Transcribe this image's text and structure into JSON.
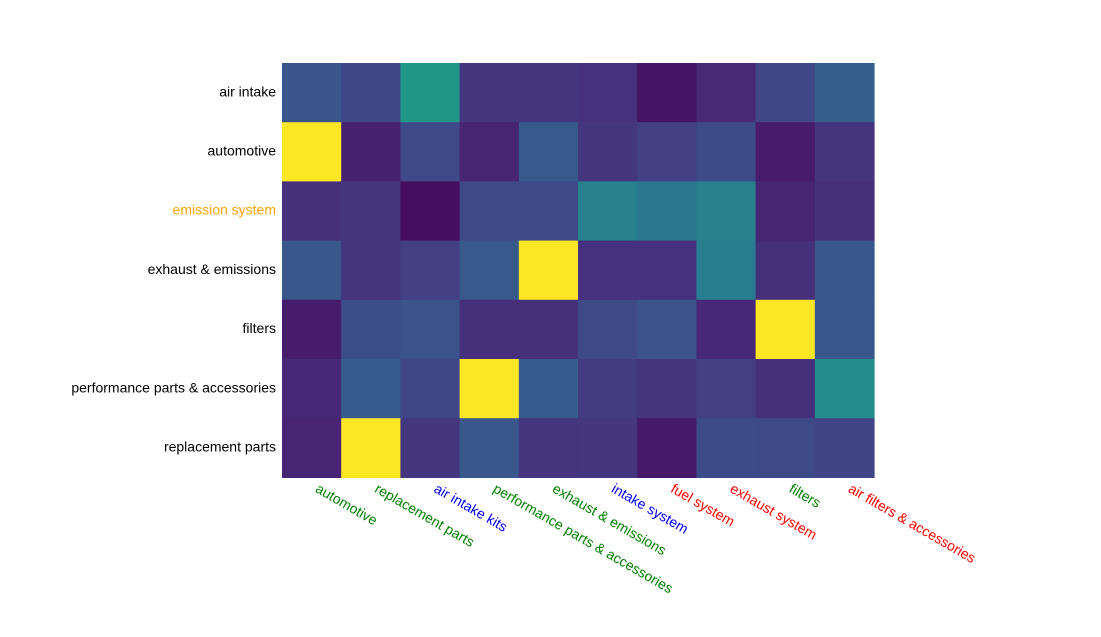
{
  "chart_data": {
    "type": "heatmap",
    "title": "",
    "xlabel": "",
    "ylabel": "",
    "colormap": "viridis",
    "value_range": [
      0,
      1
    ],
    "rows": [
      {
        "label": "air intake",
        "color": "#000000"
      },
      {
        "label": "automotive",
        "color": "#000000"
      },
      {
        "label": "emission system",
        "color": "#ffa500"
      },
      {
        "label": "exhaust & emissions",
        "color": "#000000"
      },
      {
        "label": "filters",
        "color": "#000000"
      },
      {
        "label": "performance parts & accessories",
        "color": "#000000"
      },
      {
        "label": "replacement parts",
        "color": "#000000"
      }
    ],
    "columns": [
      {
        "label": "automotive",
        "color": "#008000"
      },
      {
        "label": "replacement parts",
        "color": "#008000"
      },
      {
        "label": "air intake kits",
        "color": "#0000ff"
      },
      {
        "label": "performance parts & accessories",
        "color": "#008000"
      },
      {
        "label": "exhaust & emissions",
        "color": "#008000"
      },
      {
        "label": "intake system",
        "color": "#0000ff"
      },
      {
        "label": "fuel system",
        "color": "#ff0000"
      },
      {
        "label": "exhaust system",
        "color": "#ff0000"
      },
      {
        "label": "filters",
        "color": "#008000"
      },
      {
        "label": "air filters & accessories",
        "color": "#ff0000"
      }
    ],
    "values": [
      [
        0.33,
        0.26,
        0.66,
        0.2,
        0.2,
        0.18,
        0.07,
        0.15,
        0.26,
        0.38
      ],
      [
        1.0,
        0.12,
        0.27,
        0.13,
        0.35,
        0.2,
        0.23,
        0.29,
        0.1,
        0.19
      ],
      [
        0.17,
        0.2,
        0.05,
        0.28,
        0.27,
        0.55,
        0.5,
        0.55,
        0.13,
        0.17
      ],
      [
        0.34,
        0.19,
        0.23,
        0.35,
        1.0,
        0.18,
        0.18,
        0.53,
        0.17,
        0.34
      ],
      [
        0.1,
        0.3,
        0.32,
        0.17,
        0.17,
        0.28,
        0.32,
        0.14,
        1.0,
        0.34
      ],
      [
        0.14,
        0.36,
        0.26,
        1.0,
        0.36,
        0.22,
        0.19,
        0.23,
        0.17,
        0.6
      ],
      [
        0.13,
        1.0,
        0.2,
        0.34,
        0.19,
        0.2,
        0.09,
        0.29,
        0.28,
        0.25
      ]
    ]
  }
}
